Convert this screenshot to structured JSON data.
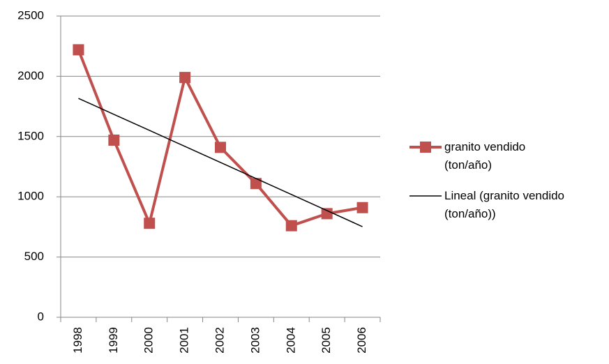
{
  "chart_data": {
    "type": "line",
    "categories": [
      "1998",
      "1999",
      "2000",
      "2001",
      "2002",
      "2003",
      "2004",
      "2005",
      "2006"
    ],
    "series": [
      {
        "name": "granito vendido (ton/año)",
        "color": "#c0504d",
        "marker": "square",
        "values": [
          2220,
          1470,
          780,
          1990,
          1410,
          1110,
          760,
          860,
          910
        ]
      },
      {
        "name": "Lineal (granito vendido (ton/año))",
        "color": "#000000",
        "values": [
          1817,
          1684,
          1551,
          1418,
          1285,
          1152,
          1019,
          886,
          752
        ]
      }
    ],
    "ylim": [
      0,
      2500
    ],
    "yticks": [
      0,
      500,
      1000,
      1500,
      2000,
      2500
    ],
    "grid": true,
    "legend": "right"
  }
}
